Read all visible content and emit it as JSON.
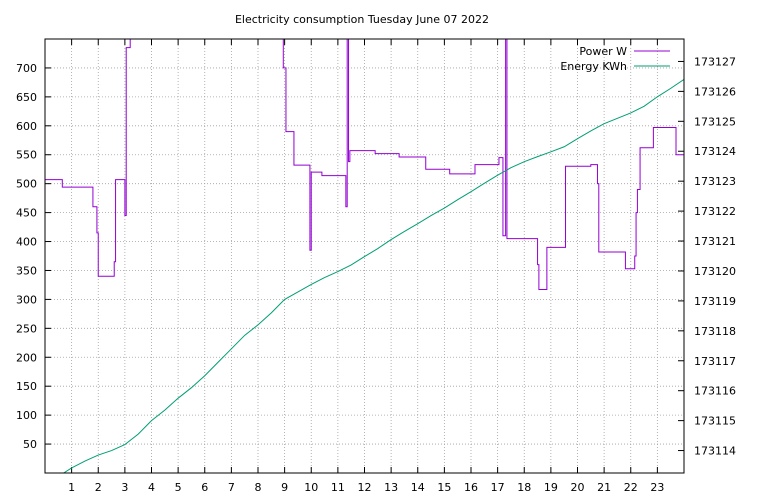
{
  "chart_data": {
    "type": "line",
    "title": "Electricity consumption Tuesday June 07 2022",
    "xlabel": "",
    "ylabel": "",
    "x_range": [
      0,
      24
    ],
    "x_ticks": [
      "1",
      "2",
      "3",
      "4",
      "5",
      "6",
      "7",
      "8",
      "9",
      "10",
      "11",
      "12",
      "13",
      "14",
      "15",
      "16",
      "17",
      "18",
      "19",
      "20",
      "21",
      "22",
      "23"
    ],
    "y_left_range": [
      0,
      750
    ],
    "y_left_ticks": [
      "50",
      "100",
      "150",
      "200",
      "250",
      "300",
      "350",
      "400",
      "450",
      "500",
      "550",
      "600",
      "650",
      "700"
    ],
    "y_right_range": [
      173113.25,
      173127.75
    ],
    "y_right_ticks": [
      "173114",
      "173115",
      "173116",
      "173117",
      "173118",
      "173119",
      "173120",
      "173121",
      "173122",
      "173123",
      "173124",
      "173125",
      "173126",
      "173127"
    ],
    "grid": true,
    "legend_position": "top-right",
    "colors": {
      "power": "#9400d3",
      "energy": "#009e73"
    },
    "series": [
      {
        "name": "Power W",
        "axis": "left",
        "style": "step",
        "points": [
          [
            0,
            507
          ],
          [
            0.65,
            507
          ],
          [
            0.65,
            494
          ],
          [
            1.8,
            494
          ],
          [
            1.8,
            460
          ],
          [
            1.95,
            460
          ],
          [
            1.95,
            415
          ],
          [
            2.0,
            415
          ],
          [
            2.0,
            340
          ],
          [
            2.6,
            340
          ],
          [
            2.6,
            365
          ],
          [
            2.65,
            365
          ],
          [
            2.65,
            507
          ],
          [
            3.0,
            507
          ],
          [
            3.0,
            445
          ],
          [
            3.05,
            445
          ],
          [
            3.05,
            735
          ],
          [
            3.2,
            735
          ],
          [
            3.2,
            750
          ],
          [
            8.95,
            750
          ],
          [
            8.95,
            700
          ],
          [
            9.05,
            700
          ],
          [
            9.05,
            590
          ],
          [
            9.35,
            590
          ],
          [
            9.35,
            532
          ],
          [
            9.95,
            532
          ],
          [
            9.95,
            385
          ],
          [
            10.0,
            385
          ],
          [
            10.0,
            520
          ],
          [
            10.4,
            520
          ],
          [
            10.4,
            514
          ],
          [
            11.3,
            514
          ],
          [
            11.3,
            460
          ],
          [
            11.35,
            460
          ],
          [
            11.35,
            750
          ],
          [
            11.4,
            750
          ],
          [
            11.4,
            538
          ],
          [
            11.45,
            538
          ],
          [
            11.45,
            557
          ],
          [
            12.4,
            557
          ],
          [
            12.4,
            552
          ],
          [
            13.3,
            552
          ],
          [
            13.3,
            546
          ],
          [
            14.3,
            546
          ],
          [
            14.3,
            525
          ],
          [
            15.2,
            525
          ],
          [
            15.2,
            517
          ],
          [
            16.15,
            517
          ],
          [
            16.15,
            533
          ],
          [
            17.05,
            533
          ],
          [
            17.05,
            545
          ],
          [
            17.2,
            545
          ],
          [
            17.2,
            410
          ],
          [
            17.3,
            410
          ],
          [
            17.3,
            750
          ],
          [
            17.35,
            750
          ],
          [
            17.35,
            405
          ],
          [
            18.5,
            405
          ],
          [
            18.5,
            360
          ],
          [
            18.55,
            360
          ],
          [
            18.55,
            317
          ],
          [
            18.85,
            317
          ],
          [
            18.85,
            390
          ],
          [
            19.55,
            390
          ],
          [
            19.55,
            530
          ],
          [
            20.5,
            530
          ],
          [
            20.5,
            533
          ],
          [
            20.75,
            533
          ],
          [
            20.75,
            500
          ],
          [
            20.8,
            500
          ],
          [
            20.8,
            382
          ],
          [
            21.8,
            382
          ],
          [
            21.8,
            353
          ],
          [
            22.15,
            353
          ],
          [
            22.15,
            375
          ],
          [
            22.2,
            375
          ],
          [
            22.2,
            450
          ],
          [
            22.25,
            450
          ],
          [
            22.25,
            490
          ],
          [
            22.35,
            490
          ],
          [
            22.35,
            562
          ],
          [
            22.85,
            562
          ],
          [
            22.85,
            597
          ],
          [
            23.7,
            597
          ],
          [
            23.7,
            550
          ],
          [
            24,
            550
          ]
        ]
      },
      {
        "name": "Energy KWh",
        "axis": "right",
        "style": "line",
        "points": [
          [
            0.7,
            173113.25
          ],
          [
            1,
            173113.42
          ],
          [
            1.5,
            173113.65
          ],
          [
            2,
            173113.85
          ],
          [
            2.5,
            173114.0
          ],
          [
            3,
            173114.2
          ],
          [
            3.5,
            173114.55
          ],
          [
            4,
            173115.0
          ],
          [
            4.5,
            173115.35
          ],
          [
            5,
            173115.75
          ],
          [
            5.5,
            173116.1
          ],
          [
            6,
            173116.5
          ],
          [
            6.5,
            173116.95
          ],
          [
            7,
            173117.4
          ],
          [
            7.5,
            173117.85
          ],
          [
            8,
            173118.2
          ],
          [
            8.5,
            173118.6
          ],
          [
            9,
            173119.05
          ],
          [
            9.5,
            173119.3
          ],
          [
            10,
            173119.55
          ],
          [
            10.5,
            173119.78
          ],
          [
            11,
            173119.98
          ],
          [
            11.5,
            173120.2
          ],
          [
            12,
            173120.48
          ],
          [
            12.5,
            173120.75
          ],
          [
            13,
            173121.05
          ],
          [
            13.5,
            173121.32
          ],
          [
            14,
            173121.58
          ],
          [
            14.5,
            173121.85
          ],
          [
            15,
            173122.1
          ],
          [
            15.5,
            173122.38
          ],
          [
            16,
            173122.65
          ],
          [
            16.5,
            173122.93
          ],
          [
            17,
            173123.2
          ],
          [
            17.5,
            173123.45
          ],
          [
            18,
            173123.65
          ],
          [
            18.5,
            173123.82
          ],
          [
            19,
            173123.98
          ],
          [
            19.5,
            173124.15
          ],
          [
            20,
            173124.42
          ],
          [
            20.5,
            173124.68
          ],
          [
            21,
            173124.92
          ],
          [
            21.5,
            173125.1
          ],
          [
            22,
            173125.28
          ],
          [
            22.5,
            173125.5
          ],
          [
            23,
            173125.82
          ],
          [
            23.5,
            173126.1
          ],
          [
            24,
            173126.4
          ]
        ]
      }
    ]
  }
}
